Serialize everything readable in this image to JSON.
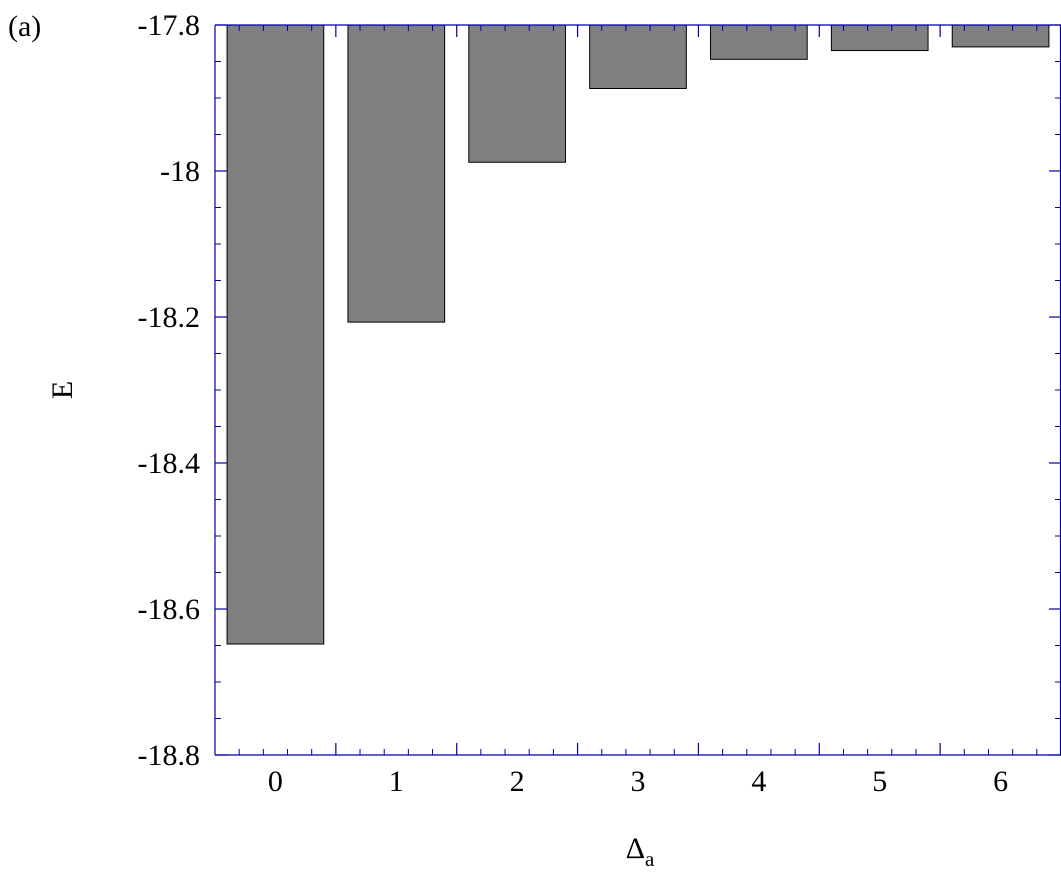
{
  "panel_label": "(a)",
  "chart_data": {
    "type": "bar",
    "title": "",
    "xlabel": "Δ",
    "xlabel_subscript": "a",
    "ylabel": "E",
    "categories": [
      "0",
      "1",
      "2",
      "3",
      "4",
      "5",
      "6"
    ],
    "values": [
      -18.648,
      -18.207,
      -17.988,
      -17.887,
      -17.847,
      -17.835,
      -17.83
    ],
    "ylim": [
      -18.8,
      -17.8
    ],
    "yticks": [
      -18.8,
      -18.6,
      -18.4,
      -18.2,
      -18,
      -17.8
    ],
    "ytick_labels": [
      "-18.8",
      "-18.6",
      "-18.4",
      "-18.2",
      "-18",
      "-17.8"
    ],
    "bars_hang_from": -17.8,
    "grid": false,
    "legend": "none",
    "colors": {
      "bar_fill": "#808080",
      "bar_stroke": "#000000",
      "axis": "#0000aa"
    }
  }
}
